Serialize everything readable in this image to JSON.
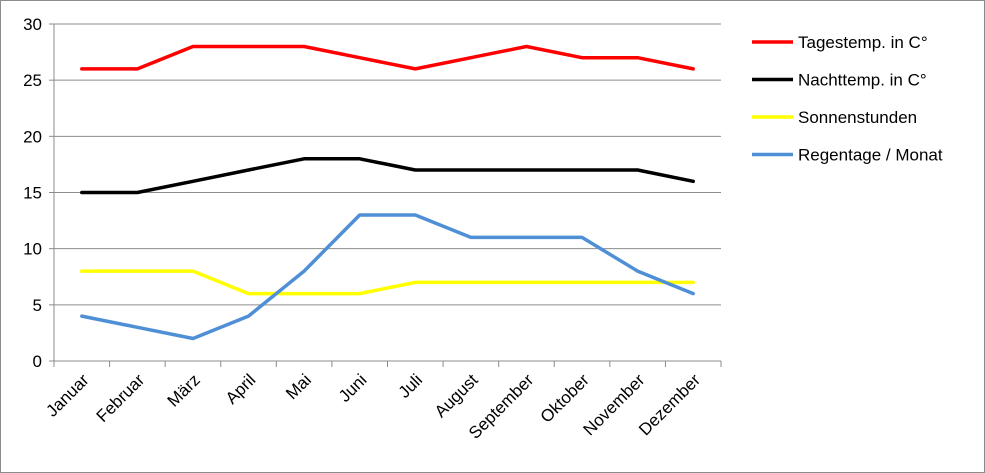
{
  "chart_data": {
    "type": "line",
    "title": "",
    "xlabel": "",
    "ylabel": "",
    "ylim": [
      0,
      30
    ],
    "yticks": [
      0,
      5,
      10,
      15,
      20,
      25,
      30
    ],
    "grid": true,
    "legend_position": "right",
    "categories": [
      "Januar",
      "Februar",
      "März",
      "April",
      "Mai",
      "Juni",
      "Juli",
      "August",
      "September",
      "Oktober",
      "November",
      "Dezember"
    ],
    "series": [
      {
        "name": "Tagestemp. in C°",
        "color": "#ff0000",
        "values": [
          26,
          26,
          28,
          28,
          28,
          27,
          26,
          27,
          28,
          27,
          27,
          26
        ]
      },
      {
        "name": "Nachttemp. in C°",
        "color": "#000000",
        "values": [
          15,
          15,
          16,
          17,
          18,
          18,
          17,
          17,
          17,
          17,
          17,
          16
        ]
      },
      {
        "name": "Sonnenstunden",
        "color": "#ffff00",
        "values": [
          8,
          8,
          8,
          6,
          6,
          6,
          7,
          7,
          7,
          7,
          7,
          7
        ]
      },
      {
        "name": "Regentage / Monat",
        "color": "#4f8fd6",
        "values": [
          4,
          3,
          2,
          4,
          8,
          13,
          13,
          11,
          11,
          11,
          8,
          6
        ]
      }
    ]
  }
}
